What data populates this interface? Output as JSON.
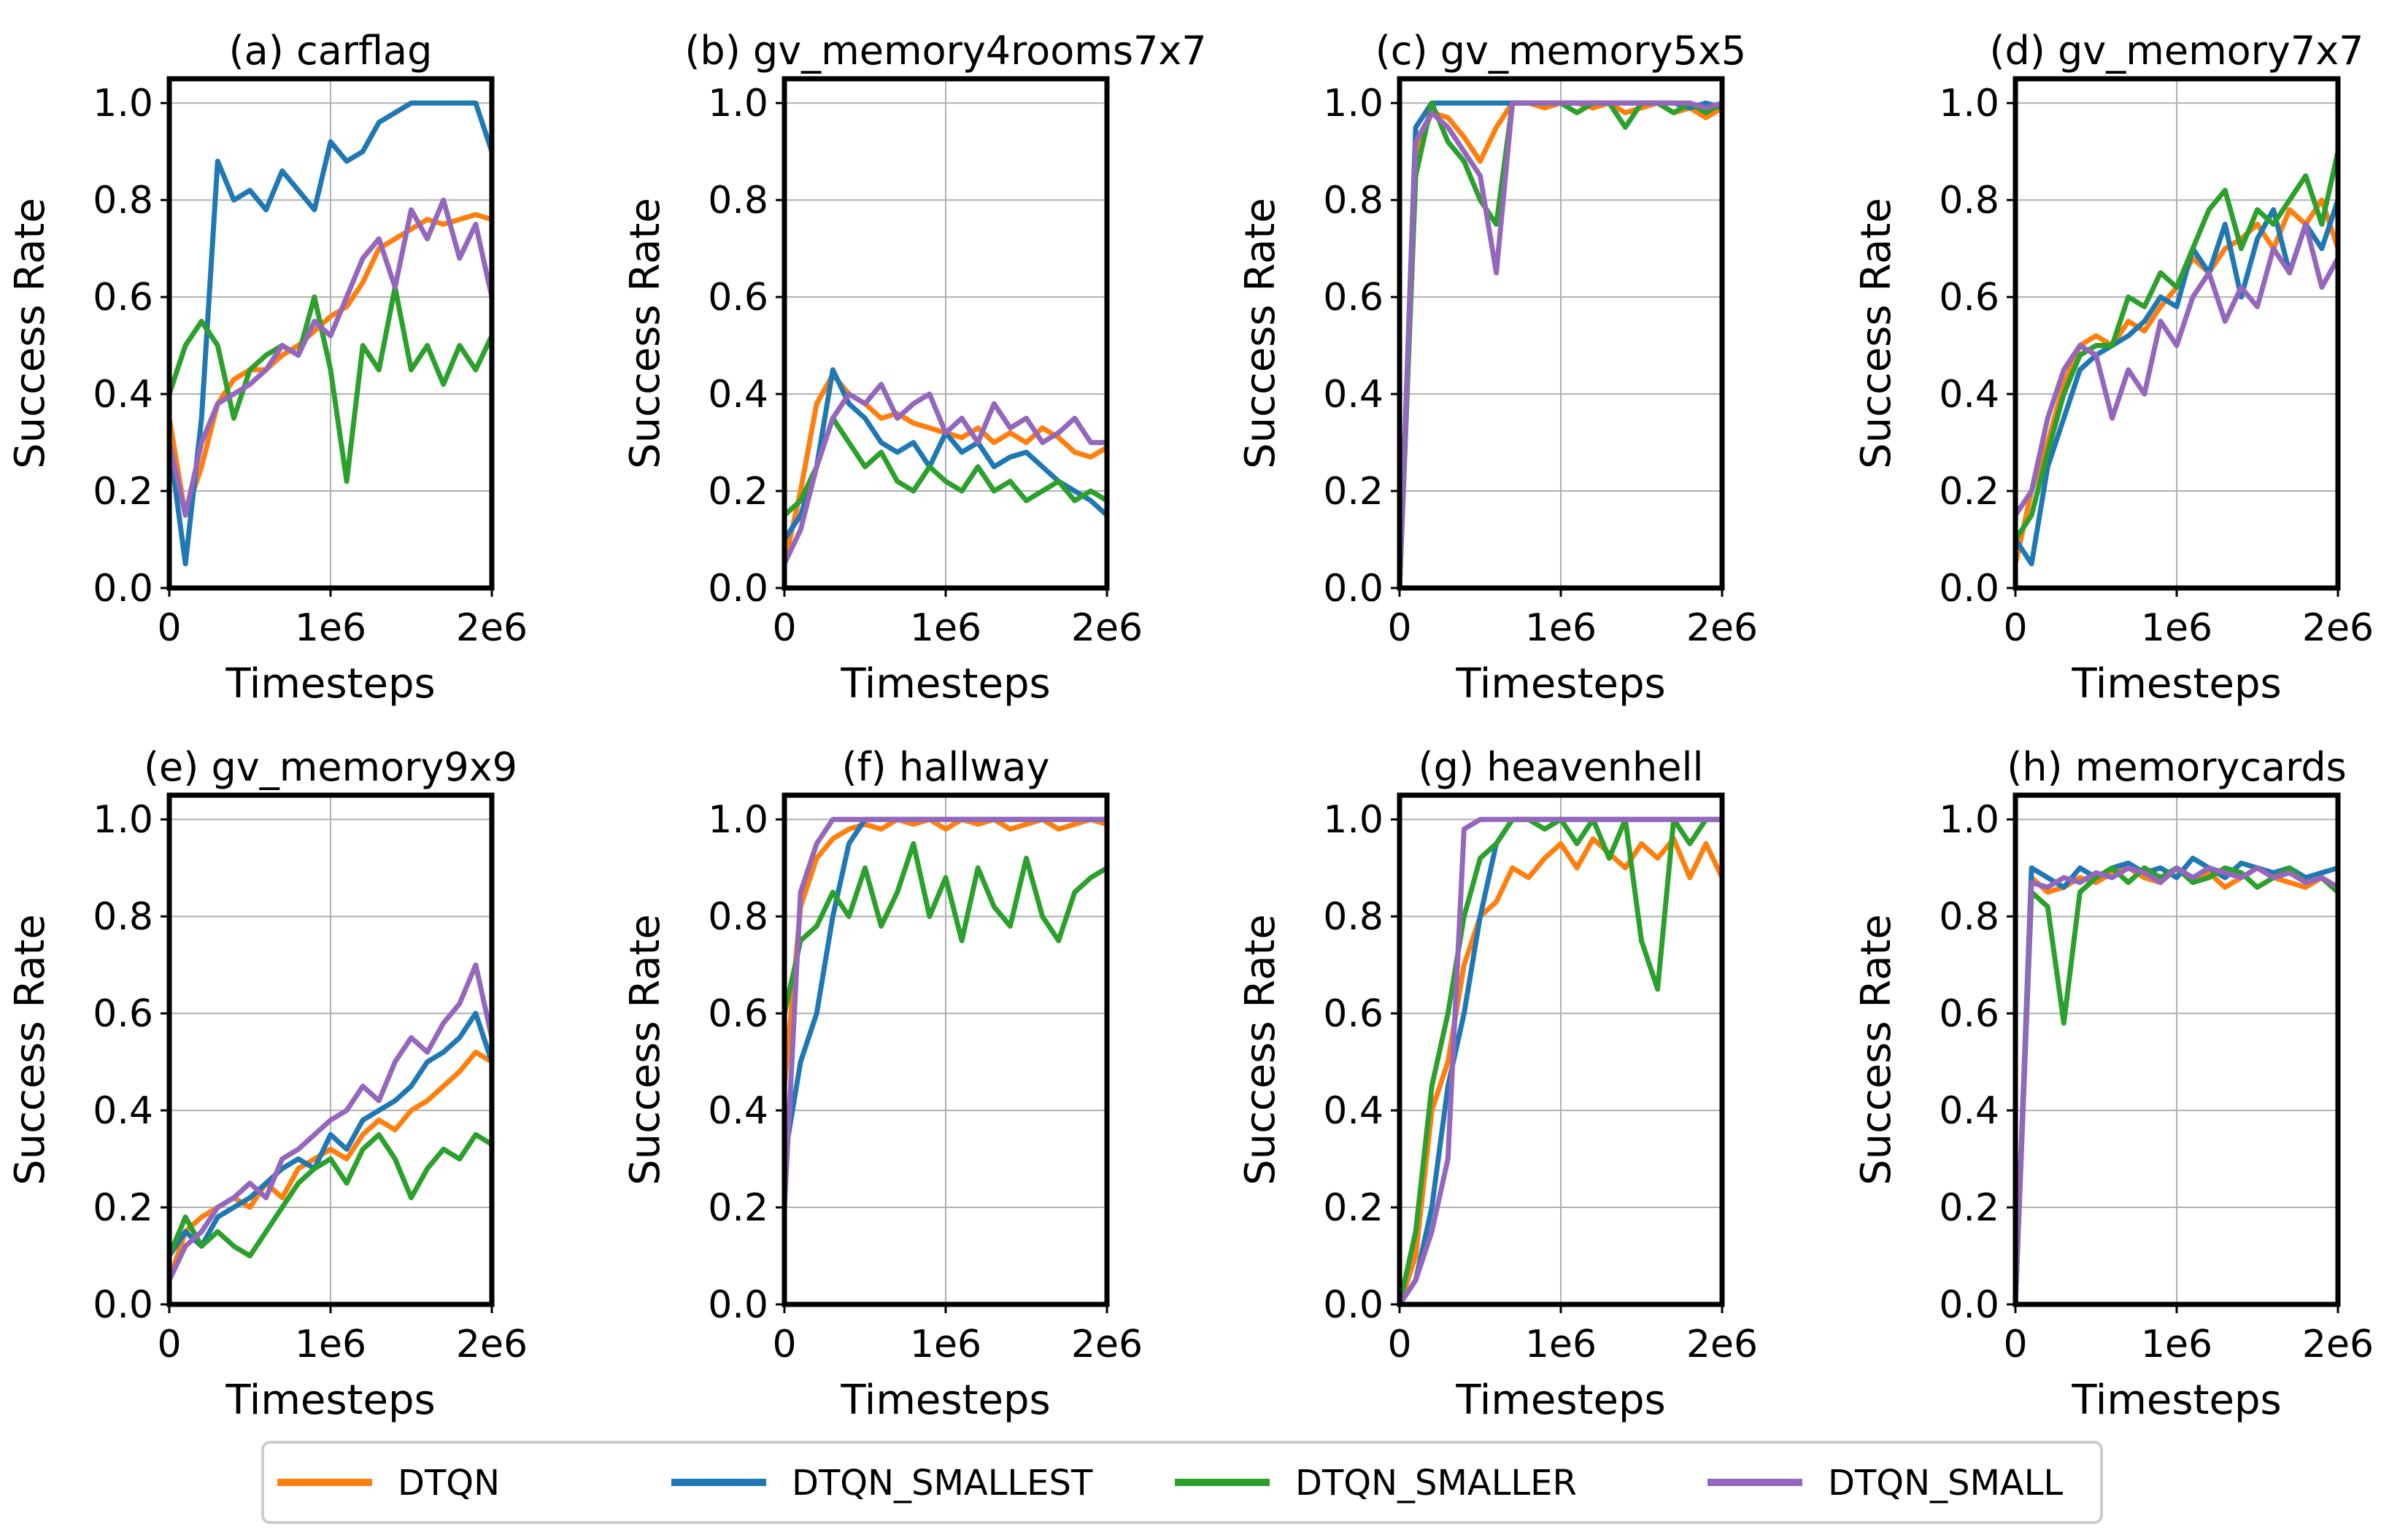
{
  "chart_data": {
    "type": "line",
    "layout": "2x4 grid",
    "xlabel": "Timesteps",
    "ylabel": "Success Rate",
    "x_tick_labels": [
      "0",
      "1e6",
      "2e6"
    ],
    "y_tick_labels": [
      "0.0",
      "0.2",
      "0.4",
      "0.6",
      "0.8",
      "1.0"
    ],
    "xlim": [
      0,
      2000000
    ],
    "ylim": [
      0,
      1.05
    ],
    "grid": true,
    "legend": {
      "placement": "bottom-center",
      "entries": [
        {
          "name": "DTQN",
          "color": "#ff7f0e"
        },
        {
          "name": "DTQN_SMALLEST",
          "color": "#1f77b4"
        },
        {
          "name": "DTQN_SMALLER",
          "color": "#2ca02c"
        },
        {
          "name": "DTQN_SMALL",
          "color": "#9467bd"
        }
      ]
    },
    "x_points": [
      0,
      100000,
      200000,
      300000,
      400000,
      500000,
      600000,
      700000,
      800000,
      900000,
      1000000,
      1100000,
      1200000,
      1300000,
      1400000,
      1500000,
      1600000,
      1700000,
      1800000,
      1900000,
      2000000
    ],
    "panels": [
      {
        "title": "(a) carflag",
        "series": [
          {
            "name": "DTQN",
            "color": "#ff7f0e",
            "values": [
              0.35,
              0.15,
              0.25,
              0.38,
              0.43,
              0.45,
              0.45,
              0.48,
              0.5,
              0.53,
              0.56,
              0.58,
              0.63,
              0.7,
              0.72,
              0.74,
              0.76,
              0.75,
              0.76,
              0.77,
              0.76
            ]
          },
          {
            "name": "DTQN_SMALLEST",
            "color": "#1f77b4",
            "values": [
              0.3,
              0.05,
              0.35,
              0.88,
              0.8,
              0.82,
              0.78,
              0.86,
              0.82,
              0.78,
              0.92,
              0.88,
              0.9,
              0.96,
              0.98,
              1.0,
              1.0,
              1.0,
              1.0,
              1.0,
              0.9
            ]
          },
          {
            "name": "DTQN_SMALLER",
            "color": "#2ca02c",
            "values": [
              0.4,
              0.5,
              0.55,
              0.5,
              0.35,
              0.45,
              0.48,
              0.5,
              0.48,
              0.6,
              0.45,
              0.22,
              0.5,
              0.45,
              0.62,
              0.45,
              0.5,
              0.42,
              0.5,
              0.45,
              0.52
            ]
          },
          {
            "name": "DTQN_SMALL",
            "color": "#9467bd",
            "values": [
              0.3,
              0.15,
              0.3,
              0.38,
              0.4,
              0.42,
              0.45,
              0.5,
              0.48,
              0.55,
              0.52,
              0.6,
              0.68,
              0.72,
              0.62,
              0.78,
              0.72,
              0.8,
              0.68,
              0.75,
              0.6
            ]
          }
        ]
      },
      {
        "title": "(b) gv_memory4rooms7x7",
        "series": [
          {
            "name": "DTQN",
            "color": "#ff7f0e",
            "values": [
              0.05,
              0.2,
              0.38,
              0.44,
              0.4,
              0.38,
              0.35,
              0.36,
              0.34,
              0.33,
              0.32,
              0.31,
              0.33,
              0.3,
              0.32,
              0.3,
              0.33,
              0.31,
              0.28,
              0.27,
              0.29
            ]
          },
          {
            "name": "DTQN_SMALLEST",
            "color": "#1f77b4",
            "values": [
              0.1,
              0.15,
              0.25,
              0.45,
              0.38,
              0.35,
              0.3,
              0.28,
              0.3,
              0.25,
              0.32,
              0.28,
              0.3,
              0.25,
              0.27,
              0.28,
              0.25,
              0.22,
              0.2,
              0.18,
              0.15
            ]
          },
          {
            "name": "DTQN_SMALLER",
            "color": "#2ca02c",
            "values": [
              0.15,
              0.18,
              0.25,
              0.35,
              0.3,
              0.25,
              0.28,
              0.22,
              0.2,
              0.25,
              0.22,
              0.2,
              0.25,
              0.2,
              0.22,
              0.18,
              0.2,
              0.22,
              0.18,
              0.2,
              0.18
            ]
          },
          {
            "name": "DTQN_SMALL",
            "color": "#9467bd",
            "values": [
              0.05,
              0.12,
              0.25,
              0.35,
              0.4,
              0.38,
              0.42,
              0.35,
              0.38,
              0.4,
              0.32,
              0.35,
              0.3,
              0.38,
              0.33,
              0.35,
              0.3,
              0.32,
              0.35,
              0.3,
              0.3
            ]
          }
        ]
      },
      {
        "title": "(c) gv_memory5x5",
        "series": [
          {
            "name": "DTQN",
            "color": "#ff7f0e",
            "values": [
              0.0,
              0.9,
              0.98,
              0.97,
              0.93,
              0.88,
              0.95,
              1.0,
              1.0,
              0.99,
              1.0,
              1.0,
              0.99,
              1.0,
              0.98,
              0.99,
              1.0,
              0.98,
              0.99,
              0.97,
              0.99
            ]
          },
          {
            "name": "DTQN_SMALLEST",
            "color": "#1f77b4",
            "values": [
              0.0,
              0.95,
              1.0,
              1.0,
              1.0,
              1.0,
              1.0,
              1.0,
              1.0,
              1.0,
              1.0,
              1.0,
              1.0,
              1.0,
              1.0,
              1.0,
              1.0,
              1.0,
              0.99,
              1.0,
              0.99
            ]
          },
          {
            "name": "DTQN_SMALLER",
            "color": "#2ca02c",
            "values": [
              0.0,
              0.85,
              1.0,
              0.92,
              0.88,
              0.8,
              0.75,
              1.0,
              1.0,
              1.0,
              1.0,
              0.98,
              1.0,
              1.0,
              0.95,
              1.0,
              1.0,
              0.98,
              1.0,
              0.98,
              1.0
            ]
          },
          {
            "name": "DTQN_SMALL",
            "color": "#9467bd",
            "values": [
              0.0,
              0.92,
              0.98,
              0.95,
              0.9,
              0.85,
              0.65,
              1.0,
              1.0,
              1.0,
              1.0,
              1.0,
              1.0,
              1.0,
              1.0,
              1.0,
              1.0,
              1.0,
              1.0,
              0.99,
              1.0
            ]
          }
        ]
      },
      {
        "title": "(d) gv_memory7x7",
        "series": [
          {
            "name": "DTQN",
            "color": "#ff7f0e",
            "values": [
              0.05,
              0.2,
              0.3,
              0.42,
              0.5,
              0.52,
              0.5,
              0.55,
              0.53,
              0.58,
              0.62,
              0.68,
              0.65,
              0.7,
              0.72,
              0.75,
              0.7,
              0.78,
              0.75,
              0.8,
              0.7
            ]
          },
          {
            "name": "DTQN_SMALLEST",
            "color": "#1f77b4",
            "values": [
              0.1,
              0.05,
              0.25,
              0.35,
              0.45,
              0.48,
              0.5,
              0.52,
              0.55,
              0.6,
              0.58,
              0.7,
              0.65,
              0.75,
              0.6,
              0.72,
              0.78,
              0.65,
              0.75,
              0.7,
              0.8
            ]
          },
          {
            "name": "DTQN_SMALLER",
            "color": "#2ca02c",
            "values": [
              0.1,
              0.15,
              0.28,
              0.4,
              0.48,
              0.5,
              0.5,
              0.6,
              0.58,
              0.65,
              0.62,
              0.7,
              0.78,
              0.82,
              0.7,
              0.78,
              0.75,
              0.8,
              0.85,
              0.75,
              0.9
            ]
          },
          {
            "name": "DTQN_SMALL",
            "color": "#9467bd",
            "values": [
              0.15,
              0.2,
              0.35,
              0.45,
              0.5,
              0.48,
              0.35,
              0.45,
              0.4,
              0.55,
              0.5,
              0.6,
              0.65,
              0.55,
              0.62,
              0.58,
              0.7,
              0.65,
              0.75,
              0.62,
              0.68
            ]
          }
        ]
      },
      {
        "title": "(e) gv_memory9x9",
        "series": [
          {
            "name": "DTQN",
            "color": "#ff7f0e",
            "values": [
              0.05,
              0.15,
              0.18,
              0.2,
              0.22,
              0.2,
              0.25,
              0.22,
              0.28,
              0.3,
              0.32,
              0.3,
              0.35,
              0.38,
              0.36,
              0.4,
              0.42,
              0.45,
              0.48,
              0.52,
              0.5
            ]
          },
          {
            "name": "DTQN_SMALLEST",
            "color": "#1f77b4",
            "values": [
              0.1,
              0.15,
              0.12,
              0.18,
              0.2,
              0.22,
              0.25,
              0.28,
              0.3,
              0.28,
              0.35,
              0.32,
              0.38,
              0.4,
              0.42,
              0.45,
              0.5,
              0.52,
              0.55,
              0.6,
              0.5
            ]
          },
          {
            "name": "DTQN_SMALLER",
            "color": "#2ca02c",
            "values": [
              0.1,
              0.18,
              0.12,
              0.15,
              0.12,
              0.1,
              0.15,
              0.2,
              0.25,
              0.28,
              0.3,
              0.25,
              0.32,
              0.35,
              0.3,
              0.22,
              0.28,
              0.32,
              0.3,
              0.35,
              0.33
            ]
          },
          {
            "name": "DTQN_SMALL",
            "color": "#9467bd",
            "values": [
              0.05,
              0.12,
              0.15,
              0.2,
              0.22,
              0.25,
              0.22,
              0.3,
              0.32,
              0.35,
              0.38,
              0.4,
              0.45,
              0.42,
              0.5,
              0.55,
              0.52,
              0.58,
              0.62,
              0.7,
              0.55
            ]
          }
        ]
      },
      {
        "title": "(f) hallway",
        "series": [
          {
            "name": "DTQN",
            "color": "#ff7f0e",
            "values": [
              0.45,
              0.82,
              0.92,
              0.96,
              0.98,
              0.99,
              0.98,
              1.0,
              0.99,
              1.0,
              0.98,
              1.0,
              0.99,
              1.0,
              0.98,
              0.99,
              1.0,
              0.98,
              0.99,
              1.0,
              0.99
            ]
          },
          {
            "name": "DTQN_SMALLEST",
            "color": "#1f77b4",
            "values": [
              0.3,
              0.5,
              0.6,
              0.8,
              0.95,
              1.0,
              1.0,
              1.0,
              1.0,
              1.0,
              1.0,
              1.0,
              1.0,
              1.0,
              1.0,
              1.0,
              1.0,
              1.0,
              1.0,
              1.0,
              1.0
            ]
          },
          {
            "name": "DTQN_SMALLER",
            "color": "#2ca02c",
            "values": [
              0.6,
              0.75,
              0.78,
              0.85,
              0.8,
              0.9,
              0.78,
              0.85,
              0.95,
              0.8,
              0.88,
              0.75,
              0.9,
              0.82,
              0.78,
              0.92,
              0.8,
              0.75,
              0.85,
              0.88,
              0.9
            ]
          },
          {
            "name": "DTQN_SMALL",
            "color": "#9467bd",
            "values": [
              0.2,
              0.85,
              0.95,
              1.0,
              1.0,
              1.0,
              1.0,
              1.0,
              1.0,
              1.0,
              1.0,
              1.0,
              1.0,
              1.0,
              1.0,
              1.0,
              1.0,
              1.0,
              1.0,
              1.0,
              1.0
            ]
          }
        ]
      },
      {
        "title": "(g) heavenhell",
        "series": [
          {
            "name": "DTQN",
            "color": "#ff7f0e",
            "values": [
              0.0,
              0.1,
              0.4,
              0.5,
              0.7,
              0.8,
              0.83,
              0.9,
              0.88,
              0.92,
              0.95,
              0.9,
              0.96,
              0.93,
              0.9,
              0.95,
              0.92,
              0.96,
              0.88,
              0.95,
              0.88
            ]
          },
          {
            "name": "DTQN_SMALLEST",
            "color": "#1f77b4",
            "values": [
              0.0,
              0.05,
              0.2,
              0.45,
              0.6,
              0.8,
              0.95,
              1.0,
              1.0,
              1.0,
              1.0,
              1.0,
              1.0,
              1.0,
              1.0,
              1.0,
              1.0,
              1.0,
              1.0,
              1.0,
              1.0
            ]
          },
          {
            "name": "DTQN_SMALLER",
            "color": "#2ca02c",
            "values": [
              0.0,
              0.15,
              0.45,
              0.6,
              0.8,
              0.92,
              0.95,
              1.0,
              1.0,
              0.98,
              1.0,
              0.95,
              1.0,
              0.92,
              1.0,
              0.75,
              0.65,
              1.0,
              0.95,
              1.0,
              1.0
            ]
          },
          {
            "name": "DTQN_SMALL",
            "color": "#9467bd",
            "values": [
              0.0,
              0.05,
              0.15,
              0.3,
              0.98,
              1.0,
              1.0,
              1.0,
              1.0,
              1.0,
              1.0,
              1.0,
              1.0,
              1.0,
              1.0,
              1.0,
              1.0,
              1.0,
              1.0,
              1.0,
              1.0
            ]
          }
        ]
      },
      {
        "title": "(h) memorycards",
        "series": [
          {
            "name": "DTQN",
            "color": "#ff7f0e",
            "values": [
              0.0,
              0.88,
              0.85,
              0.86,
              0.88,
              0.87,
              0.89,
              0.9,
              0.88,
              0.87,
              0.9,
              0.88,
              0.89,
              0.86,
              0.88,
              0.9,
              0.88,
              0.87,
              0.86,
              0.88,
              0.85
            ]
          },
          {
            "name": "DTQN_SMALLEST",
            "color": "#1f77b4",
            "values": [
              0.0,
              0.9,
              0.88,
              0.86,
              0.9,
              0.88,
              0.9,
              0.91,
              0.89,
              0.9,
              0.88,
              0.92,
              0.9,
              0.88,
              0.91,
              0.9,
              0.89,
              0.9,
              0.88,
              0.89,
              0.9
            ]
          },
          {
            "name": "DTQN_SMALLER",
            "color": "#2ca02c",
            "values": [
              0.0,
              0.85,
              0.82,
              0.58,
              0.85,
              0.88,
              0.9,
              0.87,
              0.9,
              0.88,
              0.9,
              0.87,
              0.88,
              0.9,
              0.89,
              0.86,
              0.88,
              0.9,
              0.87,
              0.88,
              0.85
            ]
          },
          {
            "name": "DTQN_SMALL",
            "color": "#9467bd",
            "values": [
              0.0,
              0.87,
              0.86,
              0.88,
              0.87,
              0.89,
              0.88,
              0.9,
              0.89,
              0.87,
              0.9,
              0.88,
              0.9,
              0.89,
              0.88,
              0.9,
              0.88,
              0.89,
              0.87,
              0.88,
              0.86
            ]
          }
        ]
      }
    ]
  }
}
